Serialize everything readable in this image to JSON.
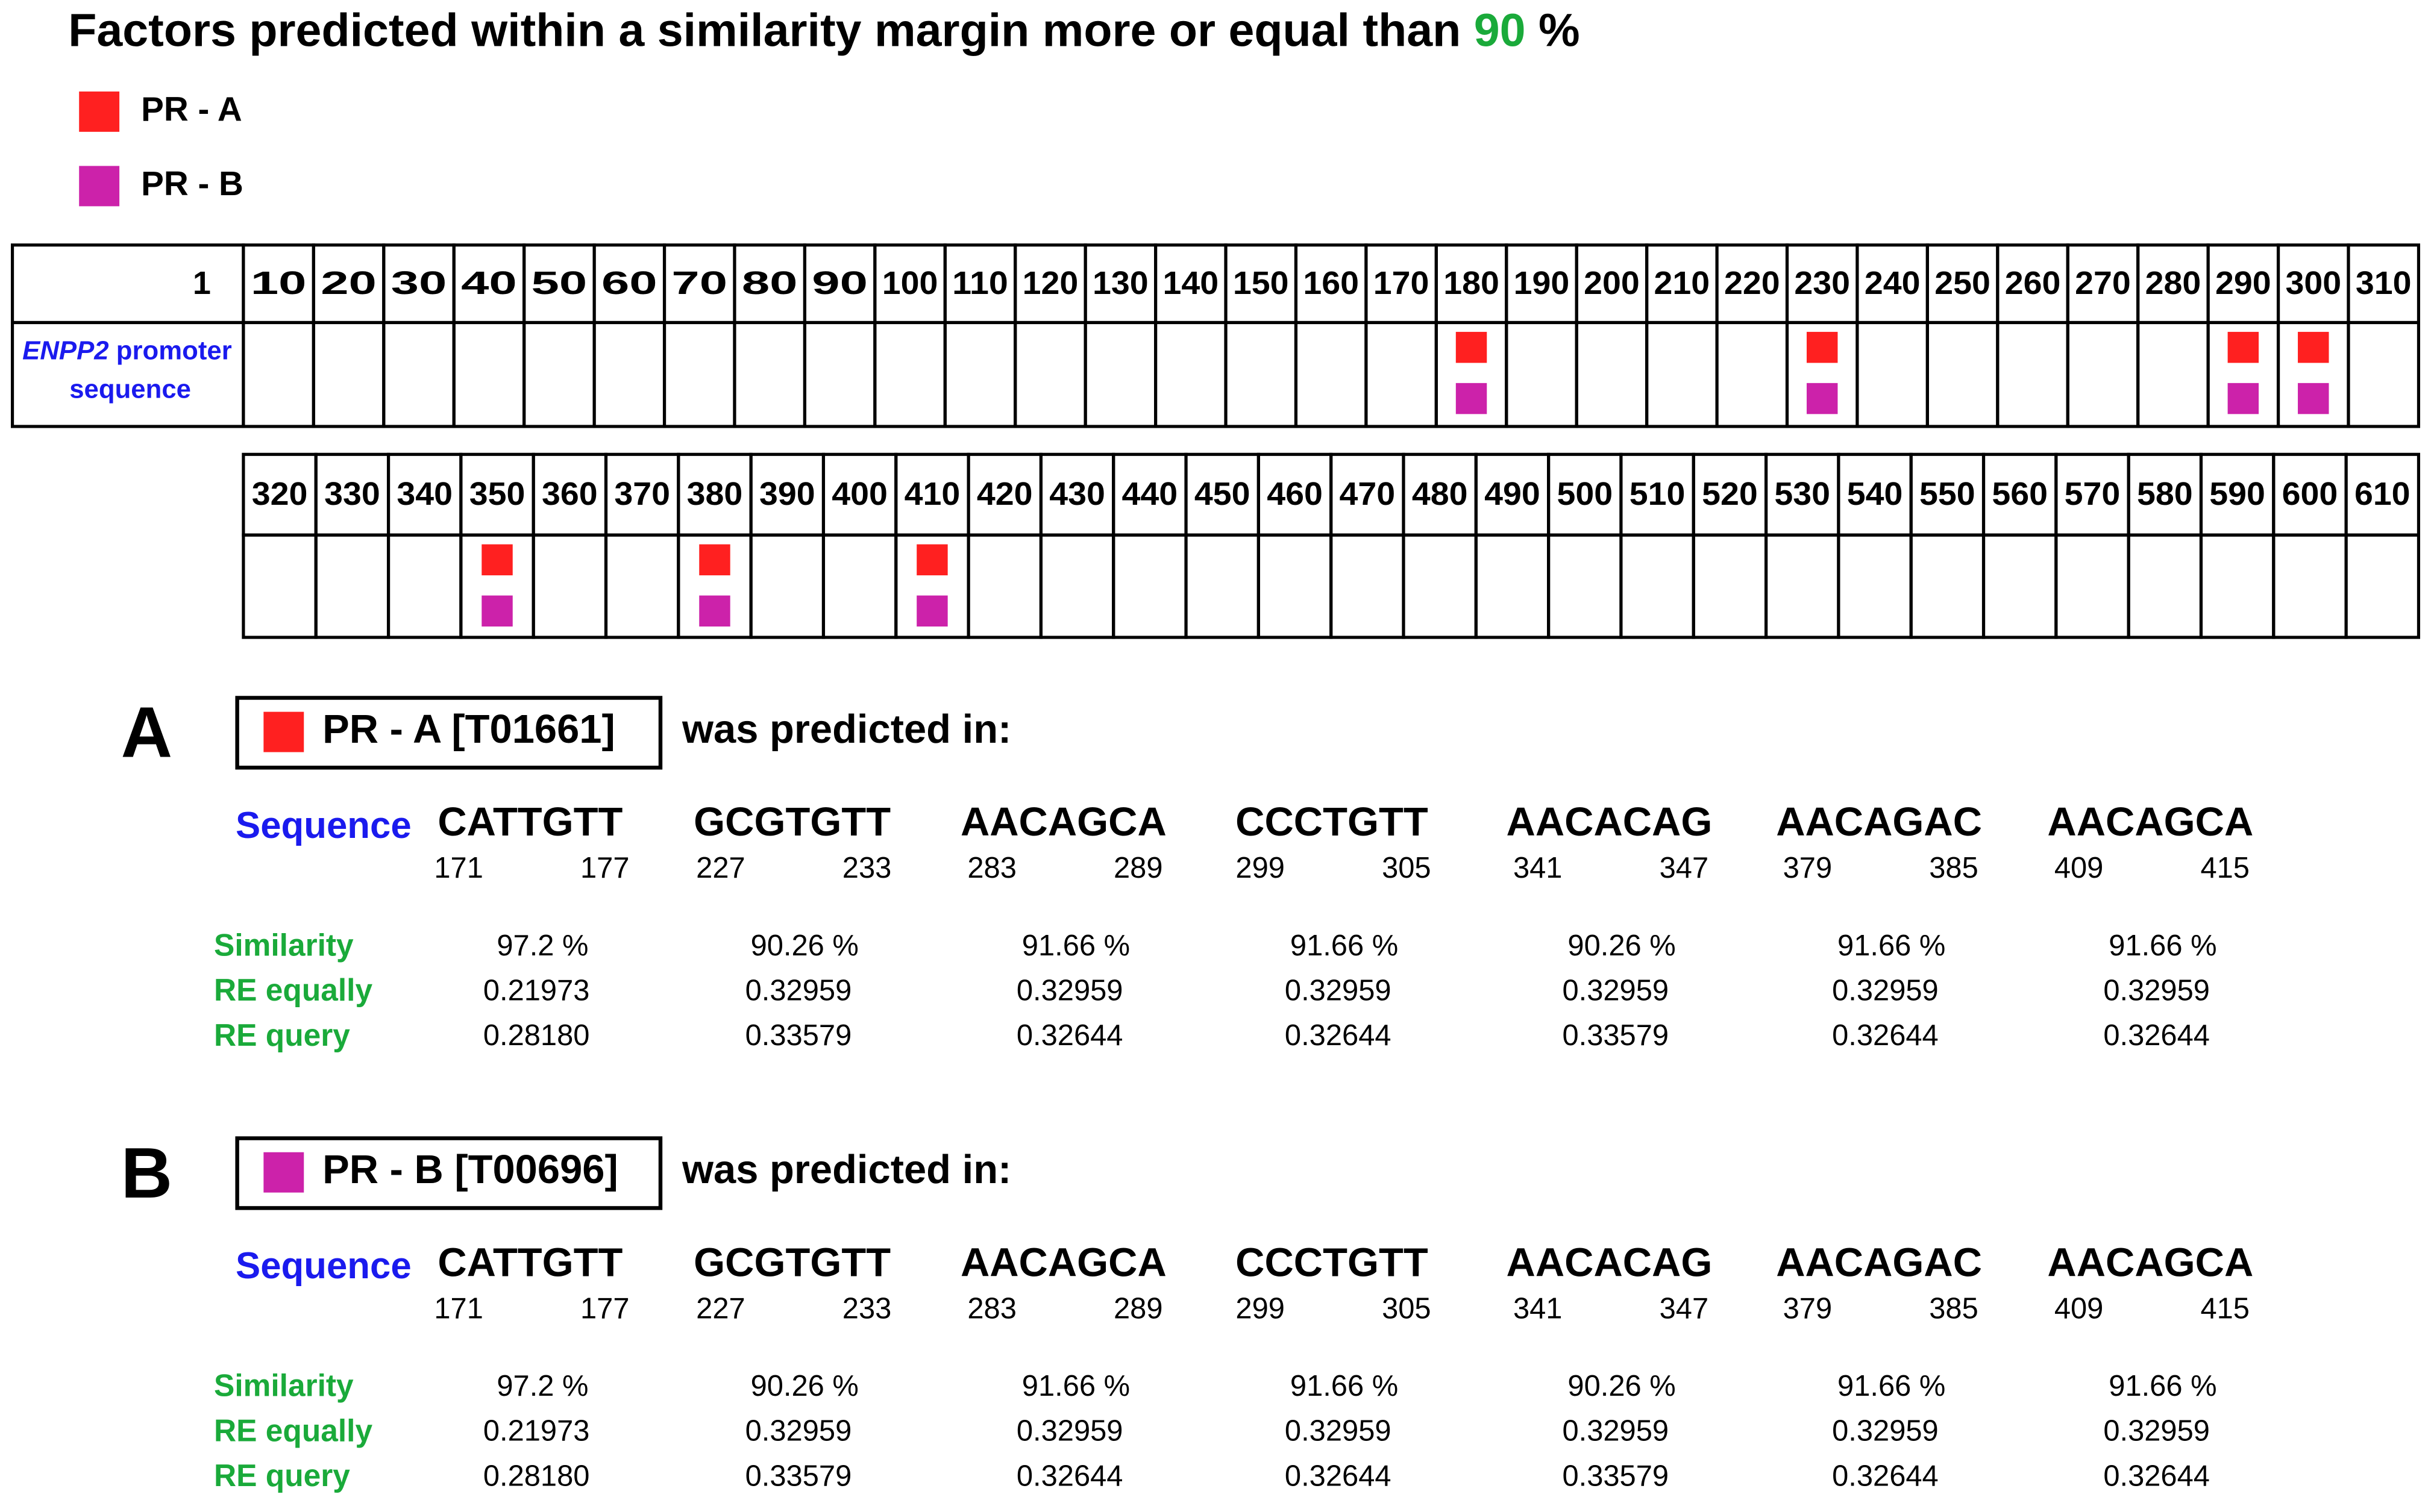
{
  "title": {
    "text": "Factors predicted within a similarity margin more or equal than",
    "threshold": "90",
    "unit": "%"
  },
  "legend": [
    {
      "label": "PR - A",
      "color": "#ff2020"
    },
    {
      "label": "PR - B",
      "color": "#cc22aa"
    }
  ],
  "map": {
    "row_label": {
      "gene": "ENPP2",
      "line1": "promoter",
      "line2": "sequence"
    },
    "tables": [
      {
        "first": "1",
        "positions": [
          "10",
          "20",
          "30",
          "40",
          "50",
          "60",
          "70",
          "80",
          "90",
          "100",
          "110",
          "120",
          "130",
          "140",
          "150",
          "160",
          "170",
          "180",
          "190",
          "200",
          "210",
          "220",
          "230",
          "240",
          "250",
          "260",
          "270",
          "280",
          "290",
          "300",
          "310"
        ],
        "hits": [
          "180",
          "230",
          "290",
          "300"
        ]
      },
      {
        "positions": [
          "320",
          "330",
          "340",
          "350",
          "360",
          "370",
          "380",
          "390",
          "400",
          "410",
          "420",
          "430",
          "440",
          "450",
          "460",
          "470",
          "480",
          "490",
          "500",
          "510",
          "520",
          "530",
          "540",
          "550",
          "560",
          "570",
          "580",
          "590",
          "600",
          "610"
        ],
        "hits": [
          "350",
          "380",
          "410"
        ]
      }
    ]
  },
  "sections": [
    {
      "letter": "A",
      "factor": "PR - A [T01661]",
      "predicted": "was predicted in:",
      "sequence_label": "Sequence",
      "row_labels": [
        "Similarity",
        "RE equally",
        "RE query"
      ],
      "sites": [
        {
          "seq": "CATTGTT",
          "start": "171",
          "end": "177",
          "similarity": "97.2 %",
          "re_equally": "0.21973",
          "re_query": "0.28180"
        },
        {
          "seq": "GCGTGTT",
          "start": "227",
          "end": "233",
          "similarity": "90.26 %",
          "re_equally": "0.32959",
          "re_query": "0.33579"
        },
        {
          "seq": "AACAGCA",
          "start": "283",
          "end": "289",
          "similarity": "91.66 %",
          "re_equally": "0.32959",
          "re_query": "0.32644"
        },
        {
          "seq": "CCCTGTT",
          "start": "299",
          "end": "305",
          "similarity": "91.66 %",
          "re_equally": "0.32959",
          "re_query": "0.32644"
        },
        {
          "seq": "AACACAG",
          "start": "341",
          "end": "347",
          "similarity": "90.26 %",
          "re_equally": "0.32959",
          "re_query": "0.33579"
        },
        {
          "seq": "AACAGAC",
          "start": "379",
          "end": "385",
          "similarity": "91.66 %",
          "re_equally": "0.32959",
          "re_query": "0.32644"
        },
        {
          "seq": "AACAGCA",
          "start": "409",
          "end": "415",
          "similarity": "91.66 %",
          "re_equally": "0.32959",
          "re_query": "0.32644"
        }
      ]
    },
    {
      "letter": "B",
      "factor": "PR - B [T00696]",
      "predicted": "was predicted in:",
      "sequence_label": "Sequence",
      "row_labels": [
        "Similarity",
        "RE equally",
        "RE query"
      ],
      "sites": [
        {
          "seq": "CATTGTT",
          "start": "171",
          "end": "177",
          "similarity": "97.2 %",
          "re_equally": "0.21973",
          "re_query": "0.28180"
        },
        {
          "seq": "GCGTGTT",
          "start": "227",
          "end": "233",
          "similarity": "90.26 %",
          "re_equally": "0.32959",
          "re_query": "0.33579"
        },
        {
          "seq": "AACAGCA",
          "start": "283",
          "end": "289",
          "similarity": "91.66 %",
          "re_equally": "0.32959",
          "re_query": "0.32644"
        },
        {
          "seq": "CCCTGTT",
          "start": "299",
          "end": "305",
          "similarity": "91.66 %",
          "re_equally": "0.32959",
          "re_query": "0.32644"
        },
        {
          "seq": "AACACAG",
          "start": "341",
          "end": "347",
          "similarity": "90.26 %",
          "re_equally": "0.32959",
          "re_query": "0.33579"
        },
        {
          "seq": "AACAGAC",
          "start": "379",
          "end": "385",
          "similarity": "91.66 %",
          "re_equally": "0.32959",
          "re_query": "0.32644"
        },
        {
          "seq": "AACAGCA",
          "start": "409",
          "end": "415",
          "similarity": "91.66 %",
          "re_equally": "0.32959",
          "re_query": "0.32644"
        }
      ]
    }
  ]
}
